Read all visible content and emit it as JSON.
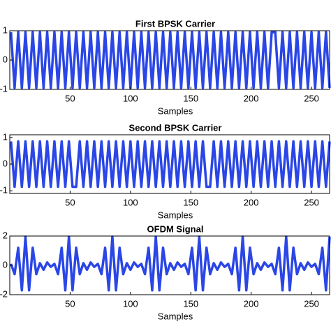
{
  "chart_data": [
    {
      "type": "line",
      "title": "First BPSK Carrier",
      "xlabel": "Samples",
      "x": [
        1,
        4,
        7,
        10,
        13,
        16,
        19,
        22,
        25,
        28,
        31,
        34,
        37,
        40,
        43,
        46,
        49,
        52,
        55,
        58,
        61,
        64,
        67,
        70,
        73,
        76,
        79,
        82,
        85,
        88,
        91,
        94,
        97,
        100,
        103,
        106,
        109,
        112,
        115,
        118,
        121,
        124,
        127,
        130,
        133,
        136,
        139,
        142,
        145,
        148,
        151,
        154,
        157,
        160,
        163,
        166,
        169,
        172,
        175,
        178,
        181,
        184,
        187,
        190,
        193,
        196,
        199,
        202,
        205,
        208,
        211,
        214,
        217,
        220,
        223,
        226,
        229,
        232,
        235,
        238,
        241,
        244,
        247,
        250,
        253,
        256,
        259,
        262,
        265
      ],
      "series": [
        {
          "color": "#2a46e6",
          "values": [
            0.95,
            -0.95,
            0.95,
            -0.95,
            0.95,
            -0.95,
            0.95,
            -0.95,
            0.95,
            -0.95,
            0.95,
            -0.95,
            0.95,
            -0.95,
            0.95,
            -0.95,
            0.95,
            -0.95,
            0.95,
            -0.95,
            0.95,
            -0.95,
            0.95,
            -0.95,
            0.95,
            -0.95,
            0.95,
            -0.95,
            0.95,
            -0.95,
            0.95,
            -0.95,
            0.95,
            -0.95,
            0.95,
            -0.95,
            0.95,
            -0.95,
            0.95,
            -0.95,
            0.95,
            -0.95,
            0.95,
            -0.95,
            0.95,
            -0.95,
            0.95,
            -0.95,
            0.95,
            -0.95,
            0.95,
            -0.95,
            0.95,
            -0.95,
            0.95,
            -0.95,
            0.95,
            -0.95,
            0.95,
            -0.95,
            0.95,
            -0.95,
            0.95,
            -0.95,
            0.95,
            -0.95,
            0.95,
            -0.95,
            0.95,
            -0.95,
            0.95,
            -0.95,
            0.95,
            0.95,
            -0.95,
            0.95,
            -0.95,
            0.95,
            -0.95,
            0.95,
            -0.95,
            0.95,
            -0.95,
            0.95,
            -0.95,
            0.95,
            -0.95,
            0.95,
            -0.95
          ]
        }
      ],
      "xlim": [
        0,
        265
      ],
      "xticks": [
        50,
        100,
        150,
        200,
        250
      ],
      "ylim": [
        -1,
        1
      ],
      "yticks": [
        -1,
        0,
        1
      ]
    },
    {
      "type": "line",
      "title": "Second BPSK Carrier",
      "xlabel": "Samples",
      "x": [
        1,
        4,
        7,
        10,
        13,
        16,
        19,
        22,
        25,
        28,
        31,
        34,
        37,
        40,
        43,
        46,
        49,
        52,
        55,
        58,
        61,
        64,
        67,
        70,
        73,
        76,
        79,
        82,
        85,
        88,
        91,
        94,
        97,
        100,
        103,
        106,
        109,
        112,
        115,
        118,
        121,
        124,
        127,
        130,
        133,
        136,
        139,
        142,
        145,
        148,
        151,
        154,
        157,
        160,
        163,
        166,
        169,
        172,
        175,
        178,
        181,
        184,
        187,
        190,
        193,
        196,
        199,
        202,
        205,
        208,
        211,
        214,
        217,
        220,
        223,
        226,
        229,
        232,
        235,
        238,
        241,
        244,
        247,
        250,
        253,
        256,
        259,
        262,
        265
      ],
      "series": [
        {
          "color": "#2a46e6",
          "values": [
            0.85,
            -0.85,
            0.85,
            -0.85,
            0.85,
            -0.85,
            0.85,
            -0.85,
            0.85,
            -0.85,
            0.85,
            -0.85,
            0.85,
            -0.85,
            0.85,
            -0.85,
            0.85,
            -0.85,
            -0.85,
            0.85,
            -0.85,
            0.85,
            -0.85,
            0.85,
            -0.85,
            0.85,
            -0.85,
            0.85,
            -0.85,
            0.85,
            -0.85,
            0.85,
            -0.85,
            0.85,
            -0.85,
            0.85,
            -0.85,
            0.85,
            -0.85,
            0.85,
            -0.85,
            0.85,
            -0.85,
            0.85,
            -0.85,
            0.85,
            -0.85,
            0.85,
            -0.85,
            0.85,
            -0.85,
            0.85,
            -0.85,
            0.85,
            -0.85,
            -0.85,
            0.85,
            -0.85,
            0.85,
            -0.85,
            0.85,
            -0.85,
            0.85,
            -0.85,
            0.85,
            -0.85,
            0.85,
            -0.85,
            0.85,
            -0.85,
            0.85,
            -0.85,
            0.85,
            -0.85,
            0.85,
            -0.85,
            0.85,
            -0.85,
            0.85,
            -0.85,
            0.85,
            -0.85,
            0.85,
            -0.85,
            0.85,
            -0.85,
            0.85,
            -0.85,
            0.85
          ]
        }
      ],
      "xlim": [
        0,
        265
      ],
      "xticks": [
        50,
        100,
        150,
        200,
        250
      ],
      "ylim": [
        -1.1,
        1.1
      ],
      "yticks": [
        -1,
        0,
        1
      ]
    },
    {
      "type": "line",
      "title": "OFDM Signal",
      "xlabel": "Samples",
      "x": [
        1,
        4,
        7,
        10,
        13,
        16,
        19,
        22,
        25,
        28,
        31,
        34,
        37,
        40,
        43,
        46,
        49,
        52,
        55,
        58,
        61,
        64,
        67,
        70,
        73,
        76,
        79,
        82,
        85,
        88,
        91,
        94,
        97,
        100,
        103,
        106,
        109,
        112,
        115,
        118,
        121,
        124,
        127,
        130,
        133,
        136,
        139,
        142,
        145,
        148,
        151,
        154,
        157,
        160,
        163,
        166,
        169,
        172,
        175,
        178,
        181,
        184,
        187,
        190,
        193,
        196,
        199,
        202,
        205,
        208,
        211,
        214,
        217,
        220,
        223,
        226,
        229,
        232,
        235,
        238,
        241,
        244,
        247,
        250,
        253,
        256,
        259,
        262,
        265
      ],
      "series": [
        {
          "color": "#2a46e6",
          "values": [
            0.1,
            -0.6,
            1.2,
            -1.7,
            1.95,
            -1.7,
            1.2,
            -0.6,
            0.15,
            -0.3,
            0.2,
            -0.1,
            0.1,
            -0.6,
            1.2,
            -1.7,
            1.95,
            -1.7,
            1.2,
            -0.6,
            0.15,
            -0.3,
            0.2,
            -0.1,
            0.1,
            -0.6,
            1.2,
            -1.7,
            1.95,
            -1.7,
            1.2,
            -0.6,
            0.15,
            -0.3,
            0.2,
            -0.1,
            0.1,
            -0.6,
            1.2,
            -1.7,
            1.95,
            -1.7,
            1.2,
            -0.6,
            0.15,
            -0.3,
            0.2,
            -0.1,
            0.1,
            -0.6,
            1.2,
            -1.7,
            1.95,
            -1.7,
            1.2,
            -0.6,
            0.15,
            -0.3,
            0.2,
            -0.1,
            0.1,
            -0.6,
            1.2,
            -1.7,
            1.95,
            -1.7,
            1.2,
            -0.6,
            0.15,
            -0.3,
            0.2,
            -0.1,
            0.1,
            -0.6,
            1.2,
            -1.7,
            1.95,
            -1.7,
            1.2,
            -0.6,
            0.15,
            -0.3,
            0.2,
            -0.1,
            0.1,
            -0.6,
            1.2,
            -1.7,
            1.95
          ]
        }
      ],
      "xlim": [
        0,
        265
      ],
      "xticks": [
        50,
        100,
        150,
        200,
        250
      ],
      "ylim": [
        -2,
        2
      ],
      "yticks": [
        -2,
        0,
        2
      ]
    }
  ]
}
